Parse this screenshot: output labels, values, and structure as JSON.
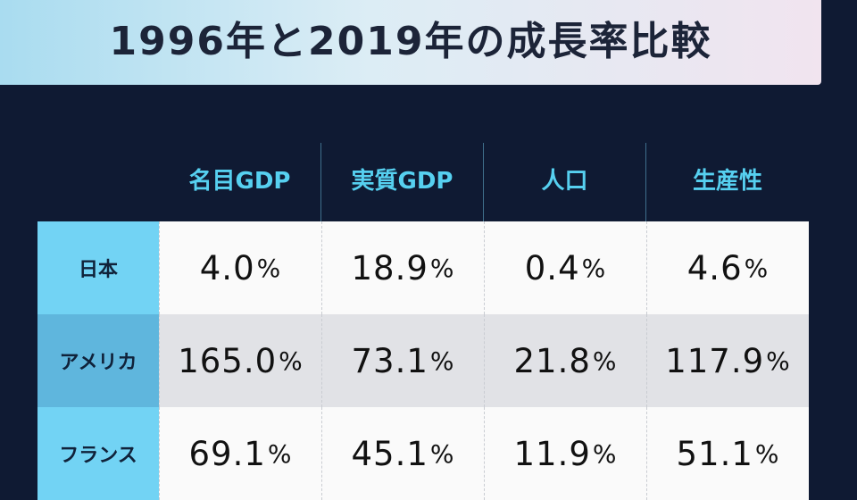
{
  "title": "1996年と2019年の成長率比較",
  "chart_data": {
    "type": "table",
    "title": "1996年と2019年の成長率比較",
    "columns": [
      "名目GDP",
      "実質GDP",
      "人口",
      "生産性"
    ],
    "rows": [
      {
        "label": "日本",
        "values": [
          "4.0",
          "18.9",
          "0.4",
          "4.6"
        ]
      },
      {
        "label": "アメリカ",
        "values": [
          "165.0",
          "73.1",
          "21.8",
          "117.9"
        ]
      },
      {
        "label": "フランス",
        "values": [
          "69.1",
          "45.1",
          "11.9",
          "51.1"
        ]
      }
    ],
    "unit": "%"
  },
  "colors": {
    "background": "#0f1a33",
    "header_text": "#56d0f0",
    "row_label_bg": "#72d3f4"
  }
}
